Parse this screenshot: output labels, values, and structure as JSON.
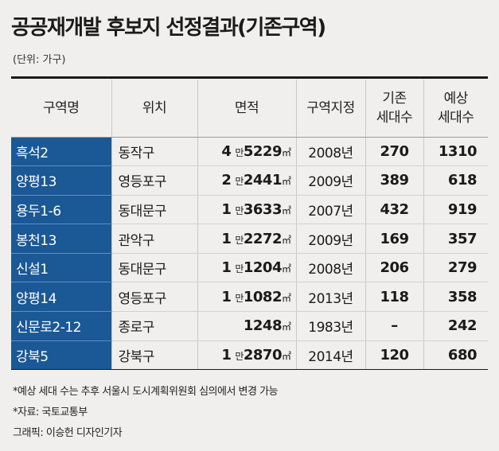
{
  "title": "공공재개발 후보지 선정결과(기존구역)",
  "unit": "(단위: 가구)",
  "columns": {
    "name": "구역명",
    "location": "위치",
    "area": "면적",
    "designated": "구역지정",
    "existing_line1": "기존",
    "existing_line2": "세대수",
    "expected_line1": "예상",
    "expected_line2": "세대수"
  },
  "labels": {
    "man": "만",
    "sqm": "㎡"
  },
  "rows": [
    {
      "name": "흑석2",
      "location": "동작구",
      "area_man": "4",
      "area_rest": "5229",
      "designated": "2008년",
      "existing": "270",
      "expected": "1310"
    },
    {
      "name": "양평13",
      "location": "영등포구",
      "area_man": "2",
      "area_rest": "2441",
      "designated": "2009년",
      "existing": "389",
      "expected": "618"
    },
    {
      "name": "용두1-6",
      "location": "동대문구",
      "area_man": "1",
      "area_rest": "3633",
      "designated": "2007년",
      "existing": "432",
      "expected": "919"
    },
    {
      "name": "봉천13",
      "location": "관악구",
      "area_man": "1",
      "area_rest": "2272",
      "designated": "2009년",
      "existing": "169",
      "expected": "357"
    },
    {
      "name": "신설1",
      "location": "동대문구",
      "area_man": "1",
      "area_rest": "1204",
      "designated": "2008년",
      "existing": "206",
      "expected": "279"
    },
    {
      "name": "양평14",
      "location": "영등포구",
      "area_man": "1",
      "area_rest": "1082",
      "designated": "2013년",
      "existing": "118",
      "expected": "358"
    },
    {
      "name": "신문로2-12",
      "location": "종로구",
      "area_man": "",
      "area_rest": "1248",
      "designated": "1983년",
      "existing": "–",
      "expected": "242"
    },
    {
      "name": "강북5",
      "location": "강북구",
      "area_man": "1",
      "area_rest": "2870",
      "designated": "2014년",
      "existing": "120",
      "expected": "680"
    }
  ],
  "notes": [
    "*예상 세대 수는 추후 서울시 도시계획위원회 심의에서 변경 가능",
    "*자료: 국토교통부",
    "그래픽: 이승헌 디자인기자"
  ],
  "colors": {
    "accent": "#1a5896",
    "background": "#f0efed"
  }
}
